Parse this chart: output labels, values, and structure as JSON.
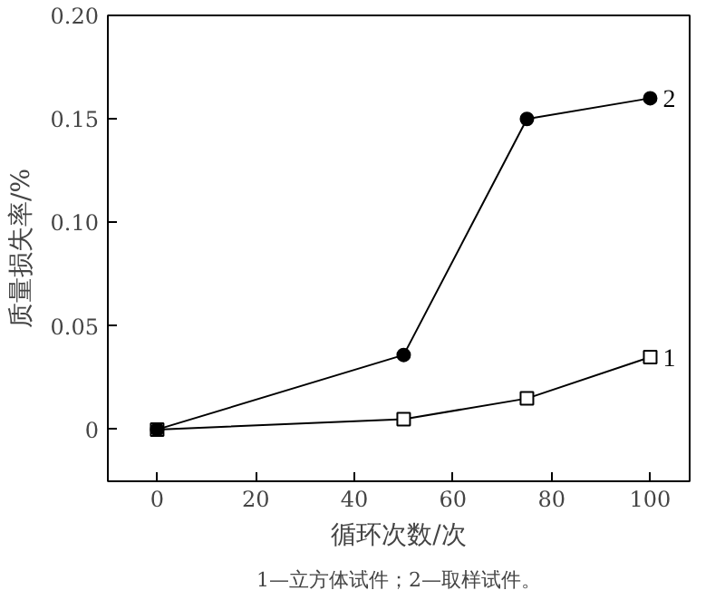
{
  "chart_data": {
    "type": "line",
    "xlabel": "循环次数/次",
    "ylabel": "质量损失率/%",
    "annotations": [
      "1—立方体试件；2—取样试件。"
    ],
    "x": [
      0,
      50,
      75,
      100
    ],
    "series": [
      {
        "name": "1",
        "color": "#000000",
        "marker": "square",
        "values": [
          0,
          0.005,
          0.015,
          0.035
        ]
      },
      {
        "name": "2",
        "color": "#000000",
        "marker": "circle",
        "values": [
          0,
          0.036,
          0.15,
          0.16
        ]
      }
    ],
    "xlim": [
      -10,
      108
    ],
    "ylim": [
      -0.025,
      0.2
    ],
    "xticks": [
      0,
      20,
      40,
      60,
      80,
      100
    ],
    "yticks": [
      0,
      {
        "value": 0.05,
        "label": "0.05"
      },
      {
        "value": 0.1,
        "label": "0.10"
      },
      {
        "value": 0.15,
        "label": "0.15"
      },
      {
        "value": 0.2,
        "label": "0.20"
      }
    ],
    "grid": false,
    "legend": false,
    "line_style": "solid"
  }
}
